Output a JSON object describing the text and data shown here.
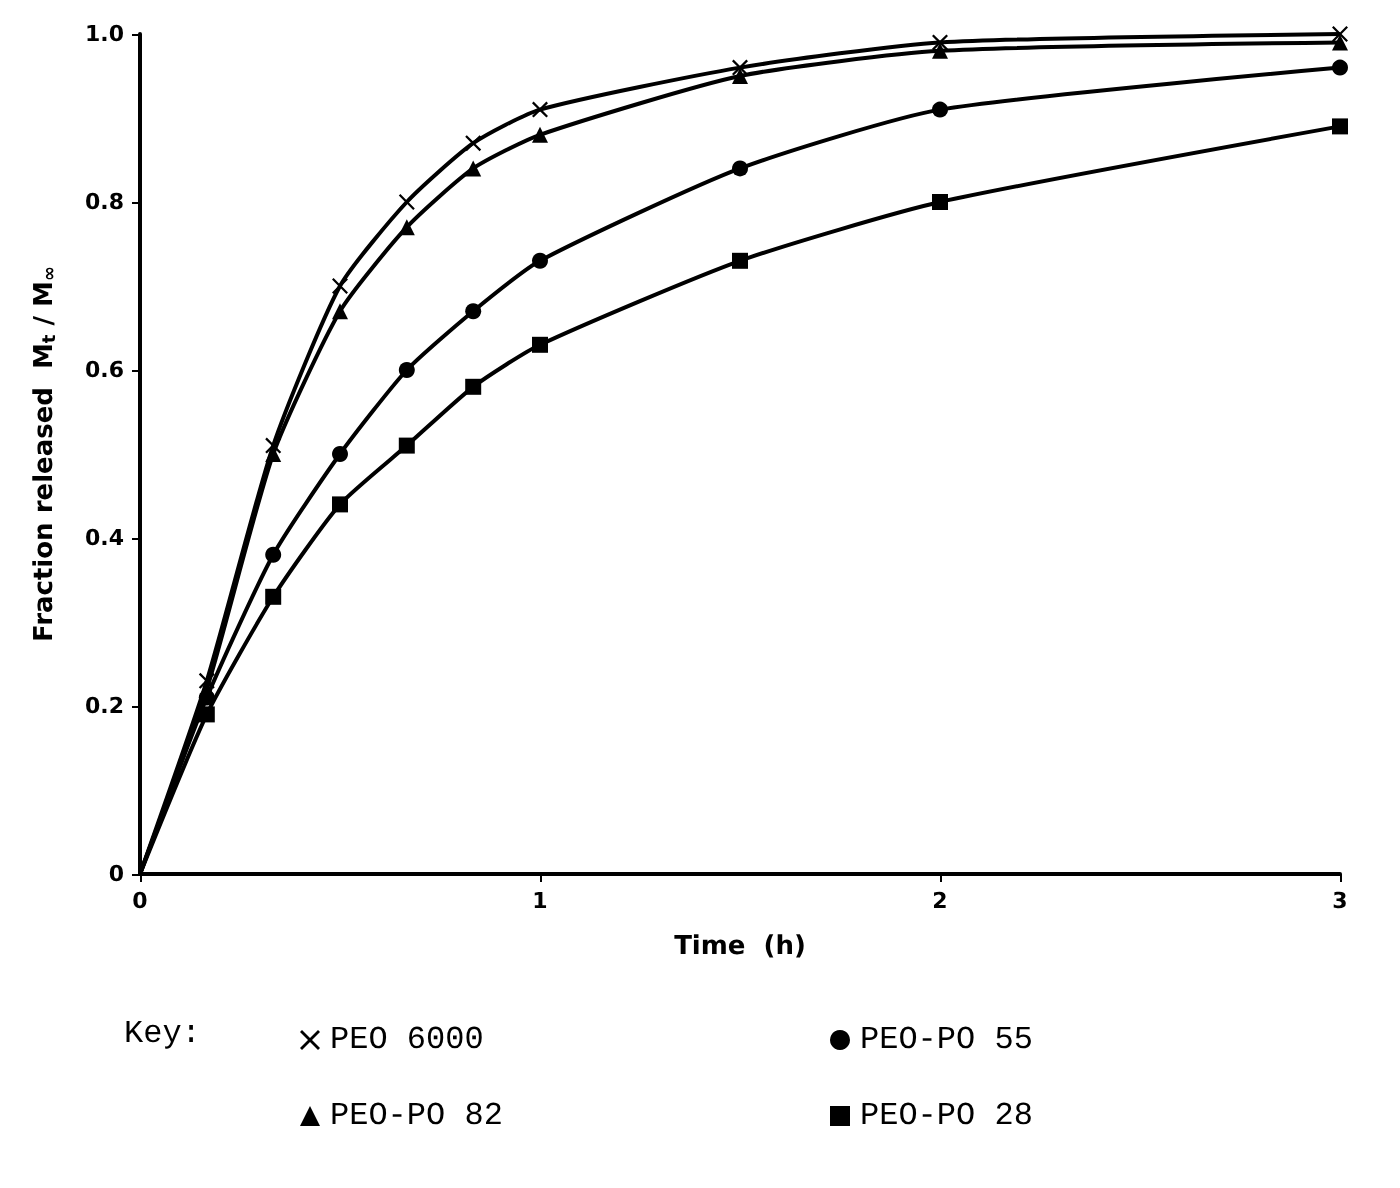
{
  "chart_data": {
    "type": "line",
    "xlabel": "Time  (h)",
    "ylabel": "Fraction released  M$_{t}$ / M$_{∞}$",
    "legend_title": "Key:",
    "x": [
      0,
      0.167,
      0.333,
      0.5,
      0.667,
      0.833,
      1,
      1.5,
      2,
      3
    ],
    "series": [
      {
        "name": "PEO 6000",
        "color": "#000000",
        "marker": "cross",
        "values": [
          0,
          0.23,
          0.51,
          0.7,
          0.8,
          0.87,
          0.91,
          0.96,
          0.99,
          1.0
        ]
      },
      {
        "name": "PEO-PO 82",
        "color": "#000000",
        "marker": "triangle",
        "values": [
          0,
          0.22,
          0.5,
          0.67,
          0.77,
          0.84,
          0.88,
          0.95,
          0.98,
          0.99
        ]
      },
      {
        "name": "PEO-PO 55",
        "color": "#000000",
        "marker": "circle",
        "values": [
          0,
          0.21,
          0.38,
          0.5,
          0.6,
          0.67,
          0.73,
          0.84,
          0.91,
          0.96
        ]
      },
      {
        "name": "PEO-PO 28",
        "color": "#000000",
        "marker": "square",
        "values": [
          0,
          0.19,
          0.33,
          0.44,
          0.51,
          0.58,
          0.63,
          0.73,
          0.8,
          0.89
        ]
      }
    ],
    "xlim": [
      0,
      3
    ],
    "xticks": [
      0,
      1,
      2,
      3
    ],
    "ylim": [
      0,
      1
    ],
    "yticks": [
      0,
      0.2,
      0.4,
      0.6,
      0.8,
      {
        "value": 1,
        "label": "1.0"
      }
    ],
    "grid": false,
    "legend": "bottom",
    "line_style": "solid"
  }
}
